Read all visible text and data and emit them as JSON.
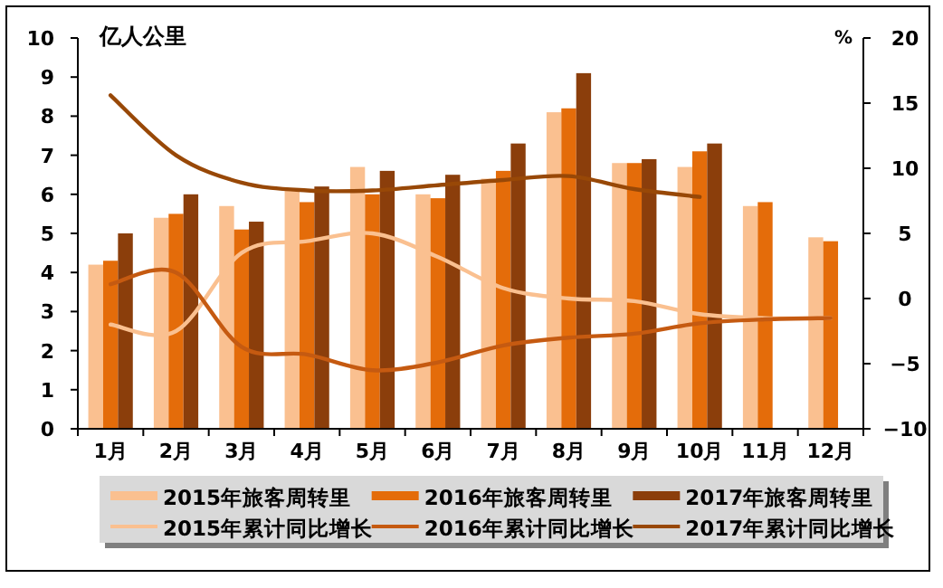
{
  "chart_data": {
    "type": "bar",
    "ylabel": "亿人公里",
    "y2label": "%",
    "categories": [
      "1月",
      "2月",
      "3月",
      "4月",
      "5月",
      "6月",
      "7月",
      "8月",
      "9月",
      "10月",
      "11月",
      "12月"
    ],
    "ylim": [
      0,
      10
    ],
    "yticks": [
      0,
      1,
      2,
      3,
      4,
      5,
      6,
      7,
      8,
      9,
      10
    ],
    "y2lim": [
      -10,
      20
    ],
    "y2ticks": [
      -10,
      -5,
      0,
      5,
      10,
      15,
      20
    ],
    "legend": "bottom",
    "grid": false,
    "series": [
      {
        "name": "2015年旅客周转里",
        "color": "#fac090",
        "values": [
          4.2,
          5.4,
          5.7,
          6.1,
          6.7,
          6.0,
          6.4,
          8.1,
          6.8,
          6.7,
          5.7,
          4.9
        ]
      },
      {
        "name": "2016年旅客周转里",
        "color": "#e46c0a",
        "values": [
          4.3,
          5.5,
          5.1,
          5.8,
          6.0,
          5.9,
          6.6,
          8.2,
          6.8,
          7.1,
          5.8,
          4.8
        ]
      },
      {
        "name": "2017年旅客周转里",
        "color": "#8b3e0b",
        "values": [
          5.0,
          6.0,
          5.3,
          6.2,
          6.6,
          6.5,
          7.3,
          9.1,
          6.9,
          7.3,
          null,
          null
        ]
      },
      {
        "name": "2015年累计同比增长",
        "type": "line",
        "axis": "y2",
        "color": "#fac090",
        "values": [
          -2.0,
          -2.5,
          3.5,
          4.4,
          5.0,
          3.2,
          0.8,
          0.0,
          -0.2,
          -1.2,
          -1.5,
          -1.5
        ]
      },
      {
        "name": "2016年累计同比增长",
        "type": "line",
        "axis": "y2",
        "color": "#c55a11",
        "values": [
          1.1,
          2.0,
          -3.7,
          -4.3,
          -5.5,
          -4.9,
          -3.6,
          -3.0,
          -2.7,
          -1.9,
          -1.6,
          -1.5
        ]
      },
      {
        "name": "2017年累计同比增长",
        "type": "line",
        "axis": "y2",
        "color": "#984807",
        "values": [
          15.6,
          11.0,
          8.9,
          8.3,
          8.3,
          8.7,
          9.1,
          9.4,
          8.4,
          7.8,
          null,
          null
        ]
      }
    ]
  }
}
